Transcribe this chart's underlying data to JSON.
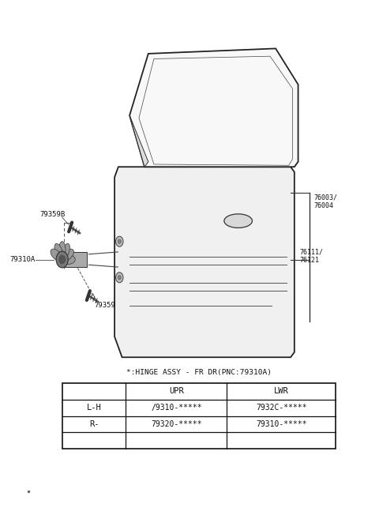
{
  "bg_color": "#ffffff",
  "fig_width": 4.8,
  "fig_height": 6.57,
  "dpi": 100,
  "table_title": "*:HINGE ASSY - FR DR(PNC:79310A)",
  "table_headers": [
    "",
    "UPR",
    "LWR"
  ],
  "table_row1_label": "L-H",
  "table_row1_upr": "/9310-*****",
  "table_row1_lwr": "7932C-*****",
  "table_row2_label": "R-",
  "table_row2_upr": "79320-*****",
  "table_row2_lwr": "79310-*****",
  "label_79359": "79359",
  "label_79310A": "79310A",
  "label_79359B": "79359B",
  "label_76003": "76003/",
  "label_76004": "76004",
  "label_76111": "76111/",
  "label_76121": "76121"
}
